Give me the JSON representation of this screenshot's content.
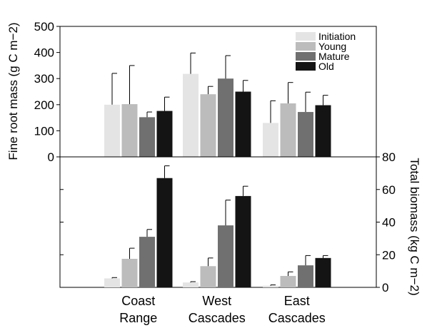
{
  "chart_data": [
    {
      "type": "bar",
      "ylabel": "Fine root mass (g C m−2)",
      "ylim": [
        0,
        500
      ],
      "yticks": [
        "0",
        "100",
        "200",
        "300",
        "400",
        "500"
      ],
      "categories": [
        "Coast Range",
        "West Cascades",
        "East Cascades"
      ],
      "series": [
        {
          "name": "Initiation",
          "color": "#e4e4e4",
          "values": [
            200,
            318,
            130
          ],
          "errors": [
            120,
            80,
            85
          ]
        },
        {
          "name": "Young",
          "color": "#bcbcbc",
          "values": [
            202,
            240,
            205
          ],
          "errors": [
            148,
            30,
            80
          ]
        },
        {
          "name": "Mature",
          "color": "#707070",
          "values": [
            152,
            300,
            172
          ],
          "errors": [
            20,
            88,
            76
          ]
        },
        {
          "name": "Old",
          "color": "#141414",
          "values": [
            176,
            250,
            198
          ],
          "errors": [
            53,
            43,
            38
          ]
        }
      ],
      "legend": "top-right",
      "grid": false
    },
    {
      "type": "bar",
      "ylabel": "Total biomass (kg C m−2)",
      "ylim": [
        0,
        80
      ],
      "yticks": [
        "0",
        "20",
        "40",
        "60",
        "80"
      ],
      "xticklabels": [
        {
          "line1": "Coast",
          "line2": "Range"
        },
        {
          "line1": "West",
          "line2": "Cascades"
        },
        {
          "line1": "East",
          "line2": "Cascades"
        }
      ],
      "categories": [
        "Coast Range",
        "West Cascades",
        "East Cascades"
      ],
      "series": [
        {
          "name": "Initiation",
          "color": "#e4e4e4",
          "values": [
            5.5,
            3.0,
            1.0
          ],
          "errors": [
            0.5,
            0.5,
            0.5
          ]
        },
        {
          "name": "Young",
          "color": "#bcbcbc",
          "values": [
            17.5,
            13.0,
            7.0
          ],
          "errors": [
            6.5,
            5.0,
            2.5
          ]
        },
        {
          "name": "Mature",
          "color": "#707070",
          "values": [
            31,
            38,
            13.5
          ],
          "errors": [
            4.5,
            15.5,
            6
          ]
        },
        {
          "name": "Old",
          "color": "#141414",
          "values": [
            67,
            56,
            18
          ],
          "errors": [
            7.5,
            6,
            1.5
          ]
        }
      ],
      "grid": false
    }
  ]
}
